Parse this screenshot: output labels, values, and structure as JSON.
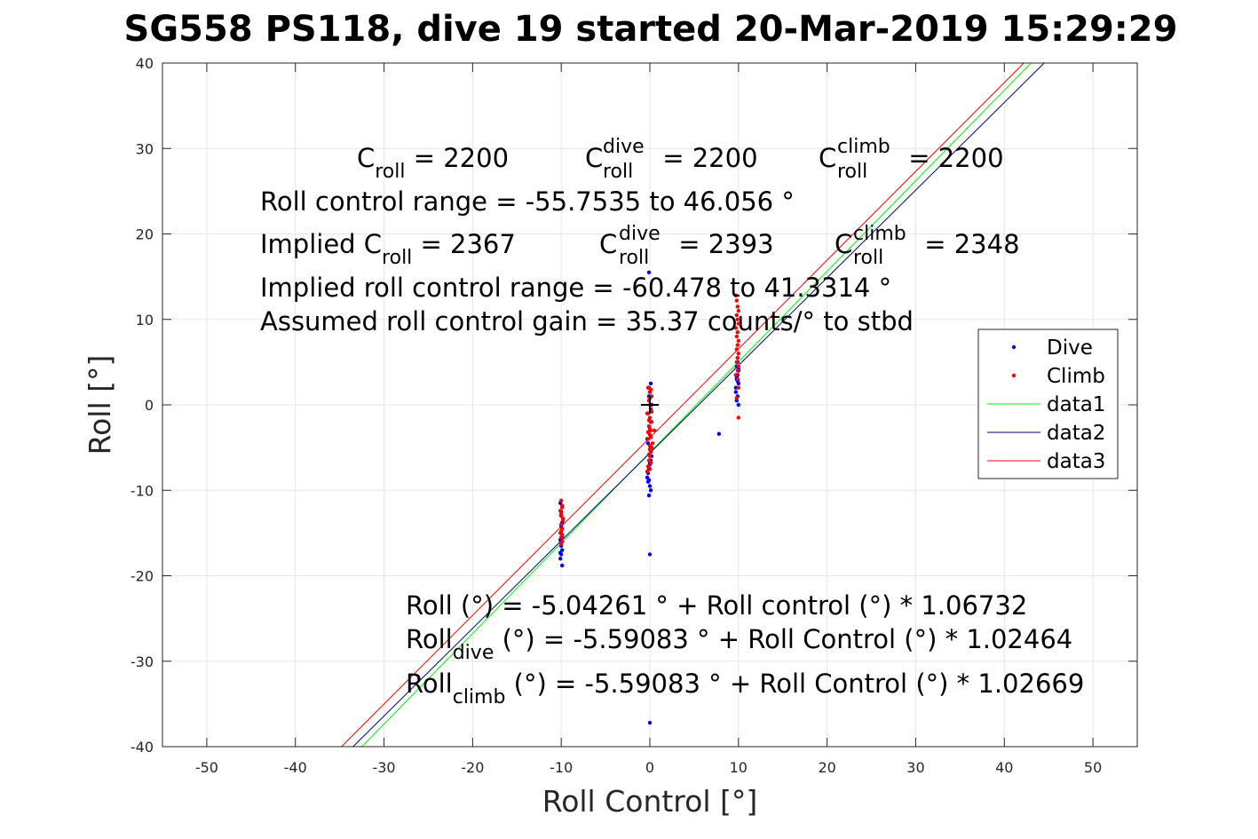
{
  "chart_data": {
    "type": "scatter",
    "title": "SG558 PS118, dive 19 started 20-Mar-2019 15:29:29",
    "xlabel": "Roll Control [°]",
    "ylabel": "Roll [°]",
    "xlim": [
      -55,
      55
    ],
    "ylim": [
      -40,
      40
    ],
    "xticks": [
      -50,
      -40,
      -30,
      -20,
      -10,
      0,
      10,
      20,
      30,
      40,
      50
    ],
    "yticks": [
      -40,
      -30,
      -20,
      -10,
      0,
      10,
      20,
      30,
      40
    ],
    "grid": true,
    "legend_position": "right",
    "series": [
      {
        "name": "Dive",
        "kind": "points",
        "color": "#0000ff",
        "x": [
          -10.1,
          -10.0,
          -9.9,
          -10.0,
          -10.1,
          -10.0,
          -9.9,
          -10.0,
          -10.1,
          -9.9,
          -10.0,
          -10.0,
          -10.1,
          -9.9,
          -10.0,
          -0.3,
          -0.2,
          -0.1,
          0.0,
          0.1,
          0.2,
          -0.2,
          0.0,
          0.1,
          -0.1,
          0.2,
          -0.3,
          0.0,
          0.1,
          -0.2,
          0.2,
          -0.1,
          0.0,
          -0.1,
          0.1,
          0.0,
          -0.2,
          0.1,
          0.0,
          -0.1,
          0.0,
          0.0,
          -0.1,
          9.7,
          9.8,
          9.9,
          10.0,
          9.8,
          9.9,
          10.0,
          9.7,
          9.9,
          9.8,
          10.0,
          9.9,
          9.8,
          10.0,
          9.9,
          7.8
        ],
        "y": [
          -11.5,
          -12.5,
          -13.8,
          -15.0,
          -15.8,
          -16.5,
          -17.0,
          -17.5,
          -18.0,
          -18.8,
          -14.2,
          -16.0,
          -17.3,
          -15.4,
          -13.0,
          -8.5,
          -8.0,
          -7.5,
          -7.0,
          -6.5,
          -6.0,
          -9.0,
          -9.5,
          -10.0,
          -10.6,
          -5.0,
          -4.0,
          -3.0,
          -2.0,
          -1.0,
          0.0,
          1.0,
          1.5,
          2.0,
          2.5,
          -3.5,
          -4.5,
          -5.5,
          -6.8,
          -8.8,
          -17.5,
          -37.2,
          15.5,
          2.0,
          3.0,
          3.5,
          4.0,
          4.5,
          5.0,
          2.5,
          1.5,
          1.0,
          0.5,
          0.0,
          2.8,
          3.2,
          4.2,
          5.5,
          -3.4
        ]
      },
      {
        "name": "Climb",
        "kind": "points",
        "color": "#ff0000",
        "x": [
          -10.0,
          -9.9,
          -10.1,
          -10.0,
          -9.8,
          -10.0,
          -9.9,
          -10.1,
          -10.0,
          -9.9,
          -10.0,
          -9.8,
          -10.0,
          -9.9,
          -10.0,
          -9.9,
          -0.3,
          -0.2,
          -0.1,
          0.0,
          0.1,
          0.2,
          0.3,
          -0.2,
          0.0,
          0.1,
          -0.1,
          0.2,
          0.0,
          -0.3,
          0.1,
          0.0,
          -0.1,
          0.2,
          0.0,
          -0.2,
          0.1,
          0.0,
          -0.1,
          0.0,
          0.1,
          0.0,
          -0.1,
          0.2,
          0.0,
          0.1,
          -0.2,
          0.0,
          0.5,
          9.7,
          9.8,
          9.9,
          10.0,
          9.8,
          9.9,
          10.0,
          9.7,
          9.9,
          9.8,
          10.0,
          9.9,
          9.8,
          10.0,
          9.9,
          9.8,
          10.0,
          9.9,
          9.7,
          9.9,
          10.0,
          9.8,
          10.0
        ],
        "y": [
          -11.2,
          -11.8,
          -12.4,
          -13.0,
          -13.5,
          -14.0,
          -14.5,
          -15.0,
          -15.5,
          -16.0,
          -12.8,
          -13.3,
          -14.8,
          -15.2,
          -16.3,
          -12.0,
          -7.8,
          -7.2,
          -6.5,
          -6.0,
          -5.5,
          -5.0,
          -4.5,
          -4.0,
          -3.5,
          -3.0,
          -2.5,
          -2.0,
          -1.5,
          -1.0,
          -0.5,
          0.0,
          0.5,
          1.0,
          1.5,
          2.0,
          -6.8,
          -7.5,
          -5.8,
          -4.8,
          -3.8,
          -2.8,
          -1.8,
          -0.8,
          0.8,
          1.8,
          -3.2,
          -5.2,
          -3.0,
          12.8,
          12.2,
          11.5,
          11.0,
          10.5,
          10.0,
          9.5,
          9.0,
          8.5,
          8.0,
          7.5,
          7.0,
          6.5,
          6.0,
          5.5,
          5.0,
          4.5,
          4.0,
          3.5,
          3.0,
          2.0,
          0.8,
          -1.5
        ]
      },
      {
        "name": "data1",
        "kind": "line",
        "color": "#00ff00",
        "x": [
          -32.5,
          43
        ],
        "y": [
          -40,
          40
        ]
      },
      {
        "name": "data2",
        "kind": "line",
        "color": "#000080",
        "x": [
          -33.5,
          44.5
        ],
        "y": [
          -40,
          40
        ]
      },
      {
        "name": "data3",
        "kind": "line",
        "color": "#ff0000",
        "x": [
          -34.8,
          42.2
        ],
        "y": [
          -40,
          40
        ]
      }
    ],
    "marker": {
      "x": 0,
      "y": 0,
      "symbol": "+"
    }
  },
  "annotations": {
    "c_roll": {
      "main": "C",
      "sub": "roll",
      "rest": " = 2200"
    },
    "c_roll_dive": {
      "main": "C",
      "sup": "dive",
      "sub": "roll",
      "rest": " = 2200"
    },
    "c_roll_climb": {
      "main": "C",
      "sup": "climb",
      "sub": "roll",
      "rest": " = 2200"
    },
    "roll_control_range": "Roll control range = -55.7535 to 46.056 °",
    "implied_c_roll": {
      "main": "Implied C",
      "sub": "roll",
      "rest": " = 2367"
    },
    "implied_c_roll_dive": {
      "main": "C",
      "sup": "dive",
      "sub": "roll",
      "rest": " = 2393"
    },
    "implied_c_roll_climb": {
      "main": "C",
      "sup": "climb",
      "sub": "roll",
      "rest": " = 2348"
    },
    "implied_range": "Implied roll control range = -60.478 to 41.3314 °",
    "gain": "Assumed roll control gain = 35.37 counts/° to stbd",
    "fit_all": "Roll (°) = -5.04261 ° + Roll control (°) * 1.06732",
    "fit_dive": {
      "main": "Roll",
      "sub": "dive",
      "rest": " (°) = -5.59083 ° + Roll Control (°) * 1.02464"
    },
    "fit_climb": {
      "main": "Roll",
      "sub": "climb",
      "rest": " (°) = -5.59083 ° + Roll Control (°) * 1.02669"
    }
  }
}
